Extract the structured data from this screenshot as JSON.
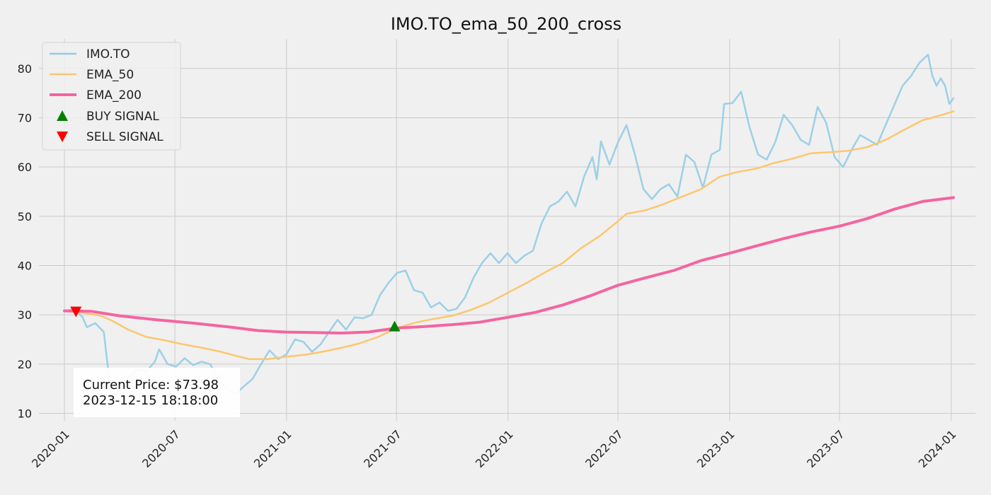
{
  "chart_data": {
    "type": "line",
    "title": "IMO.TO_ema_50_200_cross",
    "xlabel": "",
    "ylabel": "",
    "x_axis": {
      "type": "date",
      "range": [
        "2019-11-20",
        "2024-02-10"
      ],
      "ticks": [
        "2020-01-01",
        "2020-07-01",
        "2021-01-01",
        "2021-07-01",
        "2022-01-01",
        "2022-07-01",
        "2023-01-01",
        "2023-07-01",
        "2024-01-01"
      ],
      "tick_labels": [
        "2020-01",
        "2020-07",
        "2021-01",
        "2021-07",
        "2022-01",
        "2022-07",
        "2023-01",
        "2023-07",
        "2024-01"
      ],
      "tick_rotation_deg": 45
    },
    "y_axis": {
      "range": [
        8.5,
        86
      ],
      "ticks": [
        10,
        20,
        30,
        40,
        50,
        60,
        70,
        80
      ],
      "tick_labels": [
        "10",
        "20",
        "30",
        "40",
        "50",
        "60",
        "70",
        "80"
      ]
    },
    "grid": true,
    "legend_position": "top-left",
    "series": [
      {
        "name": "IMO.TO",
        "color": "#92cce6",
        "style": "thin-line",
        "points": [
          [
            "2020-01-03",
            30.8
          ],
          [
            "2020-01-17",
            31.2
          ],
          [
            "2020-01-31",
            29.5
          ],
          [
            "2020-02-07",
            27.5
          ],
          [
            "2020-02-21",
            28.3
          ],
          [
            "2020-03-06",
            26.5
          ],
          [
            "2020-03-20",
            11.5
          ],
          [
            "2020-04-03",
            16.5
          ],
          [
            "2020-04-17",
            17.5
          ],
          [
            "2020-05-01",
            19.0
          ],
          [
            "2020-05-15",
            18.5
          ],
          [
            "2020-05-29",
            20.5
          ],
          [
            "2020-06-05",
            23.0
          ],
          [
            "2020-06-19",
            20.0
          ],
          [
            "2020-07-03",
            19.5
          ],
          [
            "2020-07-17",
            21.2
          ],
          [
            "2020-07-31",
            19.8
          ],
          [
            "2020-08-14",
            20.5
          ],
          [
            "2020-08-28",
            20.0
          ],
          [
            "2020-09-11",
            17.0
          ],
          [
            "2020-09-25",
            15.0
          ],
          [
            "2020-10-09",
            14.0
          ],
          [
            "2020-10-23",
            15.5
          ],
          [
            "2020-11-06",
            17.0
          ],
          [
            "2020-11-20",
            20.0
          ],
          [
            "2020-12-04",
            22.8
          ],
          [
            "2020-12-18",
            21.0
          ],
          [
            "2021-01-01",
            22.0
          ],
          [
            "2021-01-15",
            25.0
          ],
          [
            "2021-01-29",
            24.5
          ],
          [
            "2021-02-12",
            22.5
          ],
          [
            "2021-02-26",
            24.0
          ],
          [
            "2021-03-12",
            26.5
          ],
          [
            "2021-03-26",
            29.0
          ],
          [
            "2021-04-09",
            27.0
          ],
          [
            "2021-04-23",
            29.5
          ],
          [
            "2021-05-07",
            29.3
          ],
          [
            "2021-05-21",
            30.0
          ],
          [
            "2021-06-04",
            34.0
          ],
          [
            "2021-06-18",
            36.5
          ],
          [
            "2021-07-02",
            38.5
          ],
          [
            "2021-07-16",
            39.0
          ],
          [
            "2021-07-30",
            35.0
          ],
          [
            "2021-08-13",
            34.5
          ],
          [
            "2021-08-27",
            31.5
          ],
          [
            "2021-09-10",
            32.5
          ],
          [
            "2021-09-24",
            30.8
          ],
          [
            "2021-10-08",
            31.2
          ],
          [
            "2021-10-22",
            33.5
          ],
          [
            "2021-11-05",
            37.5
          ],
          [
            "2021-11-19",
            40.5
          ],
          [
            "2021-12-03",
            42.5
          ],
          [
            "2021-12-17",
            40.5
          ],
          [
            "2021-12-31",
            42.5
          ],
          [
            "2022-01-14",
            40.5
          ],
          [
            "2022-01-28",
            42.0
          ],
          [
            "2022-02-11",
            43.0
          ],
          [
            "2022-02-25",
            48.5
          ],
          [
            "2022-03-11",
            52.0
          ],
          [
            "2022-03-25",
            53.0
          ],
          [
            "2022-04-08",
            55.0
          ],
          [
            "2022-04-22",
            52.0
          ],
          [
            "2022-05-06",
            58.0
          ],
          [
            "2022-05-20",
            62.0
          ],
          [
            "2022-05-27",
            57.5
          ],
          [
            "2022-06-03",
            65.2
          ],
          [
            "2022-06-17",
            60.5
          ],
          [
            "2022-07-01",
            65.0
          ],
          [
            "2022-07-15",
            68.5
          ],
          [
            "2022-07-29",
            62.5
          ],
          [
            "2022-08-12",
            55.5
          ],
          [
            "2022-08-26",
            53.5
          ],
          [
            "2022-09-09",
            55.5
          ],
          [
            "2022-09-23",
            56.5
          ],
          [
            "2022-10-07",
            54.0
          ],
          [
            "2022-10-21",
            62.5
          ],
          [
            "2022-11-04",
            61.0
          ],
          [
            "2022-11-18",
            55.8
          ],
          [
            "2022-12-02",
            62.5
          ],
          [
            "2022-12-16",
            63.5
          ],
          [
            "2022-12-23",
            72.8
          ],
          [
            "2023-01-06",
            73.0
          ],
          [
            "2023-01-20",
            75.3
          ],
          [
            "2023-02-03",
            68.0
          ],
          [
            "2023-02-17",
            62.5
          ],
          [
            "2023-03-03",
            61.5
          ],
          [
            "2023-03-17",
            65.0
          ],
          [
            "2023-03-31",
            70.6
          ],
          [
            "2023-04-14",
            68.5
          ],
          [
            "2023-04-28",
            65.5
          ],
          [
            "2023-05-12",
            64.5
          ],
          [
            "2023-05-26",
            72.2
          ],
          [
            "2023-06-09",
            69.0
          ],
          [
            "2023-06-23",
            62.0
          ],
          [
            "2023-07-07",
            60.0
          ],
          [
            "2023-07-21",
            63.5
          ],
          [
            "2023-08-04",
            66.5
          ],
          [
            "2023-08-18",
            65.5
          ],
          [
            "2023-09-01",
            64.5
          ],
          [
            "2023-09-15",
            68.5
          ],
          [
            "2023-09-29",
            72.5
          ],
          [
            "2023-10-13",
            76.5
          ],
          [
            "2023-10-27",
            78.5
          ],
          [
            "2023-11-10",
            81.2
          ],
          [
            "2023-11-24",
            82.8
          ],
          [
            "2023-12-01",
            78.5
          ],
          [
            "2023-12-08",
            76.5
          ],
          [
            "2023-12-15",
            78.0
          ],
          [
            "2023-12-22",
            76.5
          ],
          [
            "2023-12-29",
            72.8
          ],
          [
            "2024-01-05",
            73.98
          ]
        ]
      },
      {
        "name": "EMA_50",
        "color": "#fdc66e",
        "style": "line",
        "points": [
          [
            "2020-01-01",
            30.8
          ],
          [
            "2020-02-01",
            30.4
          ],
          [
            "2020-03-01",
            29.8
          ],
          [
            "2020-03-20",
            28.8
          ],
          [
            "2020-04-15",
            27.0
          ],
          [
            "2020-05-15",
            25.5
          ],
          [
            "2020-06-15",
            24.8
          ],
          [
            "2020-07-15",
            24.0
          ],
          [
            "2020-08-15",
            23.3
          ],
          [
            "2020-09-15",
            22.5
          ],
          [
            "2020-10-15",
            21.5
          ],
          [
            "2020-11-01",
            21.0
          ],
          [
            "2020-12-01",
            21.0
          ],
          [
            "2021-01-01",
            21.5
          ],
          [
            "2021-02-01",
            21.9
          ],
          [
            "2021-03-01",
            22.5
          ],
          [
            "2021-04-01",
            23.3
          ],
          [
            "2021-05-01",
            24.2
          ],
          [
            "2021-06-01",
            25.5
          ],
          [
            "2021-07-01",
            27.3
          ],
          [
            "2021-08-01",
            28.4
          ],
          [
            "2021-09-01",
            29.2
          ],
          [
            "2021-10-01",
            29.8
          ],
          [
            "2021-11-01",
            31.0
          ],
          [
            "2021-12-01",
            32.5
          ],
          [
            "2022-01-01",
            34.5
          ],
          [
            "2022-02-01",
            36.5
          ],
          [
            "2022-03-01",
            38.5
          ],
          [
            "2022-04-01",
            40.5
          ],
          [
            "2022-05-01",
            43.5
          ],
          [
            "2022-06-01",
            46.0
          ],
          [
            "2022-07-01",
            49.0
          ],
          [
            "2022-07-15",
            50.5
          ],
          [
            "2022-08-15",
            51.2
          ],
          [
            "2022-09-15",
            52.5
          ],
          [
            "2022-10-15",
            54.0
          ],
          [
            "2022-11-15",
            55.5
          ],
          [
            "2022-12-15",
            58.0
          ],
          [
            "2023-01-15",
            59.0
          ],
          [
            "2023-02-15",
            59.7
          ],
          [
            "2023-03-15",
            60.8
          ],
          [
            "2023-04-15",
            61.7
          ],
          [
            "2023-05-15",
            62.8
          ],
          [
            "2023-06-15",
            63.0
          ],
          [
            "2023-07-15",
            63.3
          ],
          [
            "2023-08-15",
            64.0
          ],
          [
            "2023-09-15",
            65.5
          ],
          [
            "2023-10-15",
            67.5
          ],
          [
            "2023-11-15",
            69.5
          ],
          [
            "2023-12-15",
            70.5
          ],
          [
            "2024-01-05",
            71.3
          ]
        ]
      },
      {
        "name": "EMA_200",
        "color": "#f564a0",
        "style": "thick-line",
        "points": [
          [
            "2020-01-01",
            30.8
          ],
          [
            "2020-02-15",
            30.7
          ],
          [
            "2020-04-01",
            29.8
          ],
          [
            "2020-06-01",
            29.0
          ],
          [
            "2020-08-01",
            28.3
          ],
          [
            "2020-10-01",
            27.5
          ],
          [
            "2020-11-15",
            26.8
          ],
          [
            "2021-01-01",
            26.5
          ],
          [
            "2021-02-15",
            26.4
          ],
          [
            "2021-04-01",
            26.3
          ],
          [
            "2021-05-15",
            26.5
          ],
          [
            "2021-07-01",
            27.3
          ],
          [
            "2021-08-15",
            27.6
          ],
          [
            "2021-10-01",
            28.0
          ],
          [
            "2021-11-15",
            28.5
          ],
          [
            "2022-01-01",
            29.5
          ],
          [
            "2022-02-15",
            30.5
          ],
          [
            "2022-04-01",
            32.0
          ],
          [
            "2022-05-15",
            33.8
          ],
          [
            "2022-07-01",
            36.0
          ],
          [
            "2022-08-15",
            37.5
          ],
          [
            "2022-10-01",
            39.0
          ],
          [
            "2022-11-15",
            41.0
          ],
          [
            "2023-01-01",
            42.5
          ],
          [
            "2023-02-15",
            44.0
          ],
          [
            "2023-04-01",
            45.5
          ],
          [
            "2023-05-15",
            46.8
          ],
          [
            "2023-07-01",
            48.0
          ],
          [
            "2023-08-15",
            49.5
          ],
          [
            "2023-10-01",
            51.5
          ],
          [
            "2023-11-15",
            53.0
          ],
          [
            "2024-01-05",
            53.8
          ]
        ]
      }
    ],
    "markers": [
      {
        "name": "BUY SIGNAL",
        "symbol": "triangle-up",
        "color": "#008000",
        "points": [
          [
            "2021-06-28",
            27.5
          ]
        ]
      },
      {
        "name": "SELL SIGNAL",
        "symbol": "triangle-down",
        "color": "#ff0000",
        "points": [
          [
            "2020-01-20",
            30.8
          ]
        ]
      }
    ],
    "legend": [
      "IMO.TO",
      "EMA_50",
      "EMA_200",
      "BUY SIGNAL",
      "SELL SIGNAL"
    ],
    "annotation": {
      "line1": "Current Price: $73.98",
      "line2": "2023-12-15 18:18:00",
      "position": "bottom-left"
    }
  }
}
